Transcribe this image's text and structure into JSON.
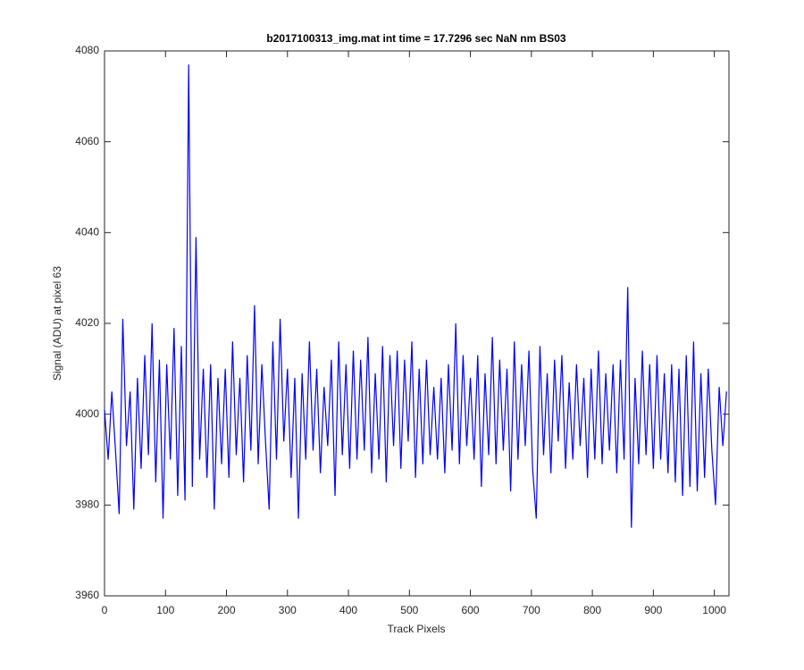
{
  "chart_data": {
    "type": "line",
    "title": "b2017100313_img.mat int time = 17.7296 sec  NaN nm BS03",
    "xlabel": "Track Pixels",
    "ylabel": "Signal (ADU) at pixel 63",
    "color": "#0000ff",
    "xlim": [
      0,
      1024
    ],
    "ylim": [
      3960,
      4080
    ],
    "xticks": [
      0,
      100,
      200,
      300,
      400,
      500,
      600,
      700,
      800,
      900,
      1000
    ],
    "yticks": [
      3960,
      3980,
      4000,
      4020,
      4040,
      4060,
      4080
    ],
    "x": [
      0,
      6,
      12,
      18,
      24,
      30,
      36,
      42,
      48,
      54,
      60,
      66,
      72,
      78,
      84,
      90,
      96,
      102,
      108,
      114,
      120,
      126,
      132,
      138,
      144,
      150,
      156,
      162,
      168,
      174,
      180,
      186,
      192,
      198,
      204,
      210,
      216,
      222,
      228,
      234,
      240,
      246,
      252,
      258,
      264,
      270,
      276,
      282,
      288,
      294,
      300,
      306,
      312,
      318,
      324,
      330,
      336,
      342,
      348,
      354,
      360,
      366,
      372,
      378,
      384,
      390,
      396,
      402,
      408,
      414,
      420,
      426,
      432,
      438,
      444,
      450,
      456,
      462,
      468,
      474,
      480,
      486,
      492,
      498,
      504,
      510,
      516,
      522,
      528,
      534,
      540,
      546,
      552,
      558,
      564,
      570,
      576,
      582,
      588,
      594,
      600,
      606,
      612,
      618,
      624,
      630,
      636,
      642,
      648,
      654,
      660,
      666,
      672,
      678,
      684,
      690,
      696,
      702,
      708,
      714,
      720,
      726,
      732,
      738,
      744,
      750,
      756,
      762,
      768,
      774,
      780,
      786,
      792,
      798,
      804,
      810,
      816,
      822,
      828,
      834,
      840,
      846,
      852,
      858,
      864,
      870,
      876,
      882,
      888,
      894,
      900,
      906,
      912,
      918,
      924,
      930,
      936,
      942,
      948,
      954,
      960,
      966,
      972,
      978,
      984,
      990,
      996,
      1002,
      1008,
      1014,
      1020
    ],
    "values": [
      4001,
      3990,
      4005,
      3992,
      3978,
      4021,
      3993,
      4005,
      3979,
      4008,
      3988,
      4013,
      3991,
      4020,
      3985,
      4012,
      3977,
      4011,
      3990,
      4019,
      3982,
      4015,
      3981,
      4077,
      3984,
      4039,
      3990,
      4010,
      3986,
      4011,
      3979,
      4008,
      3989,
      4010,
      3986,
      4016,
      3991,
      4008,
      3985,
      4013,
      3992,
      4024,
      3989,
      4011,
      3994,
      3979,
      4016,
      3990,
      4021,
      3994,
      4010,
      3986,
      4008,
      3977,
      4009,
      3990,
      4016,
      3992,
      4010,
      3987,
      4006,
      3993,
      4012,
      3982,
      4016,
      3991,
      4011,
      3988,
      4014,
      3990,
      4012,
      3992,
      4017,
      3987,
      4009,
      3990,
      4015,
      3985,
      4013,
      3993,
      4014,
      3988,
      4012,
      3994,
      4016,
      3986,
      4010,
      3989,
      4012,
      3991,
      4006,
      3990,
      4008,
      3987,
      4011,
      3992,
      4020,
      3989,
      4013,
      3993,
      4008,
      3990,
      4013,
      3984,
      4009,
      3991,
      4017,
      3989,
      4012,
      3992,
      4010,
      3983,
      4016,
      3990,
      4011,
      3993,
      4014,
      3988,
      3977,
      4015,
      3991,
      4009,
      3987,
      4012,
      3994,
      4013,
      3988,
      4007,
      3990,
      4011,
      3993,
      4008,
      3986,
      4010,
      3990,
      4014,
      3989,
      4009,
      3992,
      4011,
      3987,
      4012,
      3990,
      4028,
      3975,
      4008,
      3989,
      4014,
      3991,
      4011,
      3988,
      4013,
      3990,
      4009,
      3987,
      4011,
      3985,
      4010,
      3982,
      4013,
      3984,
      4016,
      3983,
      4009,
      3986,
      4010,
      3992,
      3980,
      4006,
      3993,
      4005
    ]
  }
}
